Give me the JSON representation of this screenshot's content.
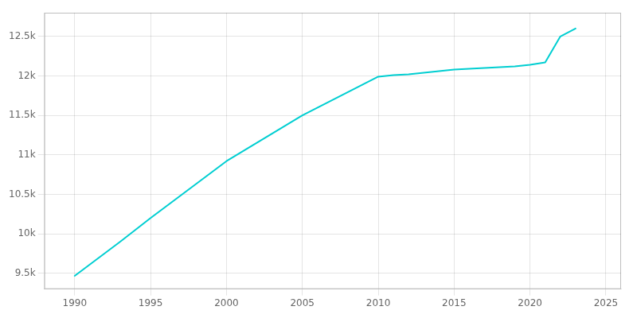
{
  "chart_data": {
    "type": "line",
    "x": [
      1990,
      1993,
      1995,
      2000,
      2005,
      2010,
      2011,
      2012,
      2013,
      2014,
      2015,
      2016,
      2017,
      2018,
      2019,
      2020,
      2021,
      2022,
      2023
    ],
    "values": [
      9467,
      9900,
      10200,
      10920,
      11500,
      11990,
      12010,
      12020,
      12040,
      12060,
      12080,
      12090,
      12100,
      12110,
      12120,
      12140,
      12170,
      12500,
      12600
    ],
    "color": "#00CED1",
    "xlim": [
      1988,
      2026
    ],
    "xticks": [
      1990,
      1995,
      2000,
      2005,
      2010,
      2015,
      2020,
      2025
    ],
    "ylim": [
      9300,
      12800
    ],
    "yticks": [
      {
        "value": 9500,
        "label": "9.5k"
      },
      {
        "value": 10000,
        "label": "10k"
      },
      {
        "value": 10500,
        "label": "10.5k"
      },
      {
        "value": 11000,
        "label": "11k"
      },
      {
        "value": 11500,
        "label": "11.5k"
      },
      {
        "value": 12000,
        "label": "12k"
      },
      {
        "value": 12500,
        "label": "12.5k"
      }
    ],
    "grid": true
  }
}
